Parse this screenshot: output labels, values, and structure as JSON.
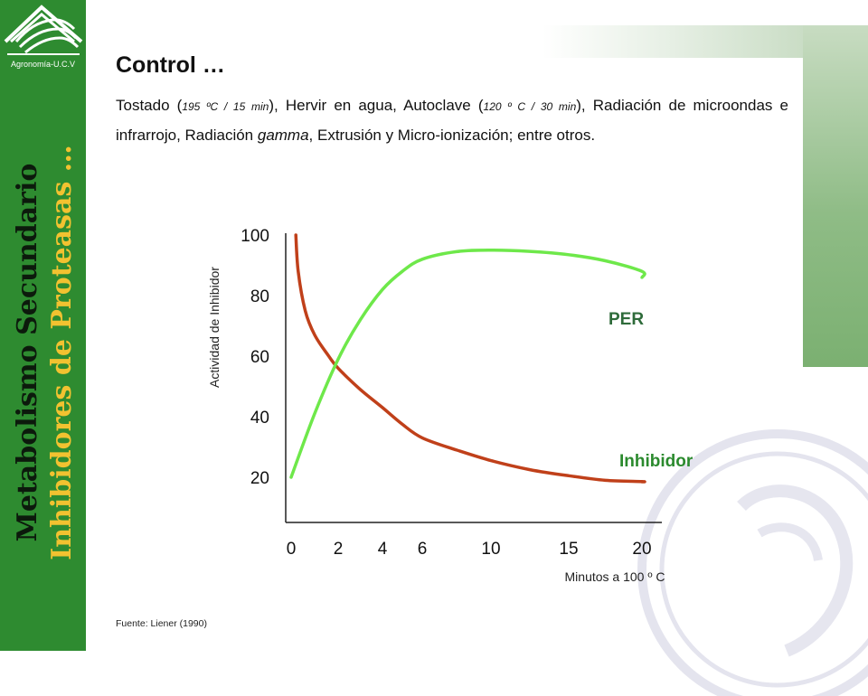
{
  "sidebar": {
    "logo_caption": "Agronomía-U.C.V",
    "vertical_title_1": "Metabolismo Secundario",
    "vertical_title_2": "Inhibidores de Proteasas …"
  },
  "slide": {
    "title": "Control …",
    "body": {
      "t1": "Tostado (",
      "s1": "195 ºC / 15 min",
      "t2": "), Hervir en agua, Autoclave (",
      "s2": "120 º C / 30 min",
      "t3": "), Radiación de microondas e infrarrojo, Radiación ",
      "em": "gamma",
      "t4": ", Extrusión y Micro-ionización; entre otros."
    },
    "source": "Fuente:  Liener (1990)"
  },
  "colors": {
    "sidebar": "#2e8b30",
    "per": "#6ee84a",
    "inhibidor": "#c0401a",
    "label": "#2e6b3a",
    "inhibidor_label": "#2b8a2e"
  },
  "chart_data": {
    "type": "line",
    "ylabel": "Actividad de Inhibidor",
    "xlabel": "Minutos a 100 º C",
    "xticks": [
      "0",
      "2",
      "4",
      "6",
      "10",
      "15",
      "20"
    ],
    "yticks": [
      "100",
      "80",
      "60",
      "40",
      "20"
    ],
    "ylim": [
      10,
      102
    ],
    "series": [
      {
        "name": "PER",
        "x_index": [
          0,
          0.5,
          1,
          1.5,
          2,
          2.5,
          3,
          3.5,
          4,
          4.5,
          5,
          5.5,
          6,
          6.3
        ],
        "values": [
          20,
          41,
          59,
          72,
          82,
          88,
          92,
          94.5,
          95,
          94.6,
          93.5,
          91.5,
          88,
          86
        ]
      },
      {
        "name": "Inhibidor",
        "x_index": [
          0.1,
          0.15,
          0.3,
          0.5,
          0.8,
          1,
          1.5,
          2,
          2.5,
          3,
          3.5,
          4,
          4.5,
          5,
          5.5,
          6,
          6.3
        ],
        "values": [
          100,
          88,
          75,
          67,
          60,
          56,
          49,
          43,
          37.5,
          33,
          29,
          25.5,
          22.5,
          20.5,
          19,
          18.6,
          18.5
        ]
      }
    ]
  }
}
